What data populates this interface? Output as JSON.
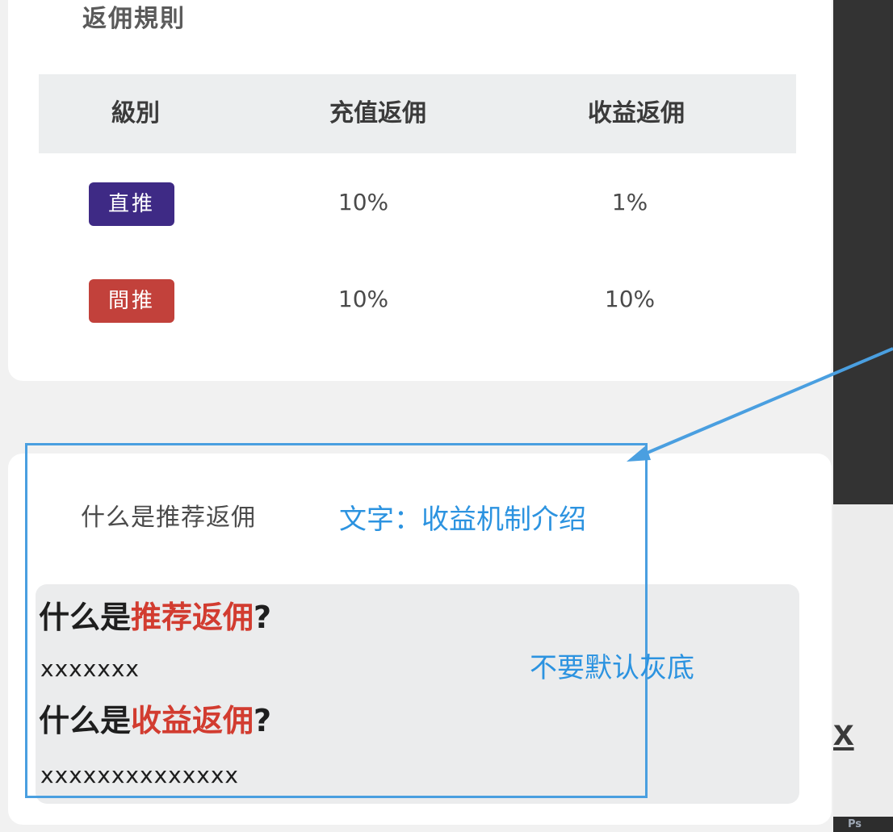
{
  "rules_section": {
    "title": "返佣規則",
    "table": {
      "headers": [
        "級別",
        "充值返佣",
        "收益返佣"
      ],
      "rows": [
        {
          "level": "直推",
          "recharge": "10%",
          "earnings": "1%",
          "badge_color": "#3e2a85"
        },
        {
          "level": "間推",
          "recharge": "10%",
          "earnings": "10%",
          "badge_color": "#c2413b"
        }
      ]
    }
  },
  "intro_section": {
    "title": "什么是推荐返佣",
    "questions": [
      {
        "prefix": "什么是",
        "highlight": "推荐返佣",
        "suffix": "?",
        "answer": "xxxxxxx"
      },
      {
        "prefix": "什么是",
        "highlight": "收益返佣",
        "suffix": "?",
        "answer": "xxxxxxxxxxxxxx"
      }
    ]
  },
  "annotations": {
    "label_text": "文字：收益机制介绍",
    "bg_note": "不要默认灰底",
    "color": "#2c93e0"
  },
  "background_app": {
    "link_text": "x",
    "ps_badge": "Ps"
  }
}
